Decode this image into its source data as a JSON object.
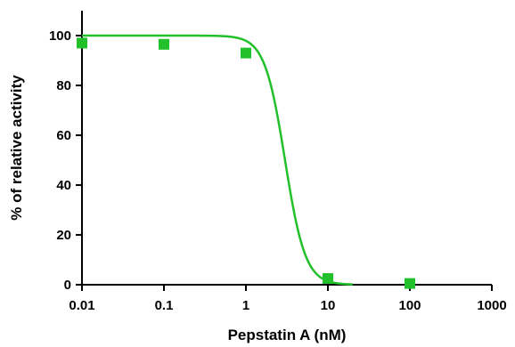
{
  "chart_data": {
    "type": "scatter",
    "title": "",
    "xlabel": "Pepstatin A (nM)",
    "ylabel": "% of relative activity",
    "xscale": "log",
    "xlim": [
      0.01,
      1000
    ],
    "ylim": [
      0,
      110
    ],
    "xticks": [
      0.01,
      0.1,
      1,
      10,
      100,
      1000
    ],
    "xtick_labels": [
      "0.01",
      "0.1",
      "1",
      "10",
      "100",
      "1000"
    ],
    "yticks": [
      0,
      20,
      40,
      60,
      80,
      100
    ],
    "ytick_labels": [
      "0",
      "20",
      "40",
      "60",
      "80",
      "100"
    ],
    "grid": false,
    "color": "#22c02a",
    "series": [
      {
        "marker": "square",
        "x": [
          0.01,
          0.1,
          1,
          10,
          100
        ],
        "y": [
          97,
          96.5,
          93,
          2.5,
          0.5
        ]
      }
    ],
    "fit_curve": {
      "model": "four-parameter logistic",
      "top": 100,
      "bottom": 0,
      "ic50": 3.0,
      "hill_slope": 3.5,
      "x_range": [
        0.01,
        20
      ]
    }
  }
}
